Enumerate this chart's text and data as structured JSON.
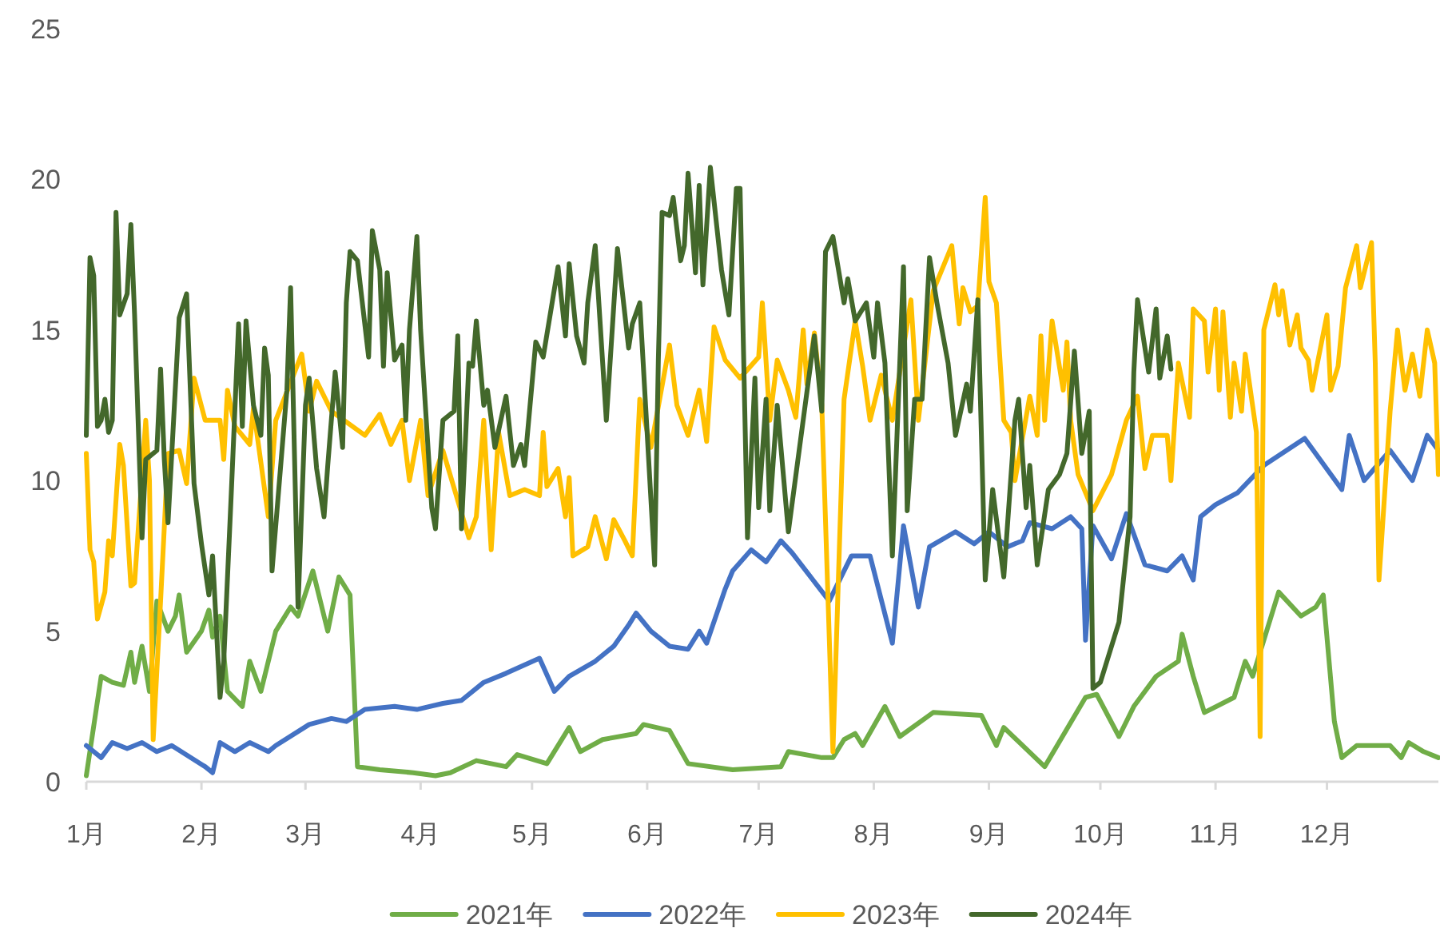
{
  "chart_data": {
    "type": "line",
    "xlim": [
      "--01-01",
      "--12-31"
    ],
    "ylim": [
      0,
      25
    ],
    "yticks": [
      0,
      5,
      10,
      15,
      20,
      25
    ],
    "xticks": [
      {
        "value": "--01-01",
        "label": "1月"
      },
      {
        "value": "--02-01",
        "label": "2月"
      },
      {
        "value": "--03-01",
        "label": "3月"
      },
      {
        "value": "--04-01",
        "label": "4月"
      },
      {
        "value": "--05-01",
        "label": "5月"
      },
      {
        "value": "--06-01",
        "label": "6月"
      },
      {
        "value": "--07-01",
        "label": "7月"
      },
      {
        "value": "--08-01",
        "label": "8月"
      },
      {
        "value": "--09-01",
        "label": "9月"
      },
      {
        "value": "--10-01",
        "label": "10月"
      },
      {
        "value": "--11-01",
        "label": "11月"
      },
      {
        "value": "--12-01",
        "label": "12月"
      }
    ],
    "legend": "bottom",
    "series": [
      {
        "name": "2021年",
        "color": "#70ad47",
        "x": [
          "--01-01",
          "--01-05",
          "--01-08",
          "--01-11",
          "--01-13",
          "--01-14",
          "--01-16",
          "--01-18",
          "--01-20",
          "--01-23",
          "--01-25",
          "--01-26",
          "--01-28",
          "--02-01",
          "--02-03",
          "--02-04",
          "--02-06",
          "--02-08",
          "--02-12",
          "--02-14",
          "--02-17",
          "--02-20",
          "--02-21",
          "--02-25",
          "--02-27",
          "--03-03",
          "--03-07",
          "--03-10",
          "--03-13",
          "--03-15",
          "--03-21",
          "--03-30",
          "--04-05",
          "--04-09",
          "--04-16",
          "--04-24",
          "--04-27",
          "--05-05",
          "--05-11",
          "--05-14",
          "--05-20",
          "--05-29",
          "--05-31",
          "--06-07",
          "--06-12",
          "--06-24",
          "--07-07",
          "--07-09",
          "--07-18",
          "--07-21",
          "--07-24",
          "--07-27",
          "--07-29",
          "--08-04",
          "--08-08",
          "--08-17",
          "--08-30",
          "--09-03",
          "--09-05",
          "--09-16",
          "--09-27",
          "--09-30",
          "--10-06",
          "--10-10",
          "--10-16",
          "--10-22",
          "--10-23",
          "--10-26",
          "--10-29",
          "--11-06",
          "--11-09",
          "--11-11",
          "--11-18",
          "--11-24",
          "--11-28",
          "--11-30",
          "--12-03",
          "--12-05",
          "--12-09",
          "--12-18",
          "--12-21",
          "--12-23",
          "--12-27",
          "--12-31"
        ],
        "values": [
          0.2,
          3.5,
          3.3,
          3.2,
          4.3,
          3.3,
          4.5,
          3.0,
          6.0,
          5.0,
          5.5,
          6.2,
          4.3,
          5.0,
          5.7,
          4.8,
          5.5,
          3.0,
          2.5,
          4.0,
          3.0,
          4.5,
          5.0,
          5.8,
          5.5,
          7.0,
          5.0,
          6.8,
          6.2,
          0.5,
          0.4,
          0.3,
          0.2,
          0.3,
          0.7,
          0.5,
          0.9,
          0.6,
          1.8,
          1.0,
          1.4,
          1.6,
          1.9,
          1.7,
          0.6,
          0.4,
          0.5,
          1.0,
          0.8,
          0.8,
          1.4,
          1.6,
          1.2,
          2.5,
          1.5,
          2.3,
          2.2,
          1.2,
          1.8,
          0.5,
          2.8,
          2.9,
          1.5,
          2.5,
          3.5,
          4.0,
          4.9,
          3.5,
          2.3,
          2.8,
          4.0,
          3.5,
          6.3,
          5.5,
          5.8,
          6.2,
          2.0,
          0.8,
          1.2,
          1.2,
          0.8,
          1.3,
          1.0,
          0.8
        ]
      },
      {
        "name": "2022年",
        "color": "#4472c4",
        "x": [
          "--01-01",
          "--01-05",
          "--01-08",
          "--01-12",
          "--01-16",
          "--01-20",
          "--01-24",
          "--02-02",
          "--02-04",
          "--02-06",
          "--02-10",
          "--02-14",
          "--02-19",
          "--02-21",
          "--03-02",
          "--03-08",
          "--03-12",
          "--03-17",
          "--03-25",
          "--03-31",
          "--04-07",
          "--04-12",
          "--04-18",
          "--04-24",
          "--05-03",
          "--05-07",
          "--05-11",
          "--05-18",
          "--05-23",
          "--05-27",
          "--05-29",
          "--06-02",
          "--06-07",
          "--06-12",
          "--06-15",
          "--06-17",
          "--06-22",
          "--06-24",
          "--06-29",
          "--07-03",
          "--07-07",
          "--07-10",
          "--07-20",
          "--07-22",
          "--07-26",
          "--07-31",
          "--08-06",
          "--08-09",
          "--08-13",
          "--08-16",
          "--08-23",
          "--08-28",
          "--09-01",
          "--09-06",
          "--09-10",
          "--09-12",
          "--09-18",
          "--09-23",
          "--09-26",
          "--09-27",
          "--09-29",
          "--10-04",
          "--10-08",
          "--10-13",
          "--10-19",
          "--10-23",
          "--10-26",
          "--10-28",
          "--11-01",
          "--11-07",
          "--11-14",
          "--11-25",
          "--12-05",
          "--12-07",
          "--12-11",
          "--12-18",
          "--12-24",
          "--12-28",
          "--12-31"
        ],
        "values": [
          1.2,
          0.8,
          1.3,
          1.1,
          1.3,
          1.0,
          1.2,
          0.5,
          0.3,
          1.3,
          1.0,
          1.3,
          1.0,
          1.2,
          1.9,
          2.1,
          2.0,
          2.4,
          2.5,
          2.4,
          2.6,
          2.7,
          3.3,
          3.6,
          4.1,
          3.0,
          3.5,
          4.0,
          4.5,
          5.2,
          5.6,
          5.0,
          4.5,
          4.4,
          5.0,
          4.6,
          6.4,
          7.0,
          7.7,
          7.3,
          8.0,
          7.6,
          6.0,
          6.5,
          7.5,
          7.5,
          4.6,
          8.5,
          5.8,
          7.8,
          8.3,
          7.9,
          8.3,
          7.8,
          8.0,
          8.6,
          8.4,
          8.8,
          8.4,
          4.7,
          8.5,
          7.4,
          8.9,
          7.2,
          7.0,
          7.5,
          6.7,
          8.8,
          9.2,
          9.6,
          10.5,
          11.4,
          9.7,
          11.5,
          10.0,
          11.0,
          10.0,
          11.5,
          11.0
        ]
      },
      {
        "name": "2023年",
        "color": "#ffc000",
        "x": [
          "--01-01",
          "--01-02",
          "--01-03",
          "--01-04",
          "--01-06",
          "--01-07",
          "--01-08",
          "--01-10",
          "--01-11",
          "--01-13",
          "--01-14",
          "--01-17",
          "--01-18",
          "--01-19",
          "--01-21",
          "--01-23",
          "--01-26",
          "--01-28",
          "--01-30",
          "--02-02",
          "--02-06",
          "--02-07",
          "--02-08",
          "--02-10",
          "--02-14",
          "--02-15",
          "--02-19",
          "--02-21",
          "--02-28",
          "--03-02",
          "--03-04",
          "--03-08",
          "--03-17",
          "--03-21",
          "--03-24",
          "--03-27",
          "--03-29",
          "--04-01",
          "--04-03",
          "--04-07",
          "--04-14",
          "--04-16",
          "--04-18",
          "--04-20",
          "--04-22",
          "--04-25",
          "--04-29",
          "--05-03",
          "--05-04",
          "--05-05",
          "--05-08",
          "--05-10",
          "--05-11",
          "--05-12",
          "--05-16",
          "--05-18",
          "--05-21",
          "--05-23",
          "--05-26",
          "--05-28",
          "--05-30",
          "--06-02",
          "--06-07",
          "--06-09",
          "--06-12",
          "--06-15",
          "--06-17",
          "--06-19",
          "--06-22",
          "--06-26",
          "--07-01",
          "--07-02",
          "--07-04",
          "--07-06",
          "--07-09",
          "--07-11",
          "--07-13",
          "--07-14",
          "--07-16",
          "--07-18",
          "--07-21",
          "--07-24",
          "--07-27",
          "--07-29",
          "--07-31",
          "--08-03",
          "--08-06",
          "--08-11",
          "--08-13",
          "--08-17",
          "--08-22",
          "--08-24",
          "--08-25",
          "--08-27",
          "--08-29",
          "--08-31",
          "--09-01",
          "--09-03",
          "--09-05",
          "--09-07",
          "--09-08",
          "--09-12",
          "--09-14",
          "--09-15",
          "--09-16",
          "--09-18",
          "--09-21",
          "--09-22",
          "--09-23",
          "--09-25",
          "--09-29",
          "--10-04",
          "--10-08",
          "--10-11",
          "--10-13",
          "--10-15",
          "--10-19",
          "--10-20",
          "--10-22",
          "--10-25",
          "--10-26",
          "--10-29",
          "--10-30",
          "--11-01",
          "--11-02",
          "--11-03",
          "--11-05",
          "--11-06",
          "--11-08",
          "--11-09",
          "--11-12",
          "--11-13",
          "--11-14",
          "--11-17",
          "--11-18",
          "--11-19",
          "--11-21",
          "--11-23",
          "--11-24",
          "--11-26",
          "--11-27",
          "--12-01",
          "--12-02",
          "--12-04",
          "--12-06",
          "--12-09",
          "--12-10",
          "--12-13",
          "--12-14",
          "--12-15",
          "--12-18",
          "--12-20",
          "--12-22",
          "--12-24",
          "--12-26",
          "--12-28",
          "--12-30",
          "--12-31"
        ],
        "values": [
          10.9,
          7.7,
          7.3,
          5.4,
          6.3,
          8.0,
          7.5,
          11.2,
          10.5,
          6.5,
          6.6,
          12.0,
          10.0,
          1.4,
          6.0,
          10.9,
          11.0,
          9.9,
          13.4,
          12.0,
          12.0,
          10.7,
          13.0,
          11.8,
          11.2,
          12.4,
          8.8,
          12.0,
          14.2,
          12.3,
          13.3,
          12.3,
          11.5,
          12.2,
          11.2,
          12.0,
          10.0,
          12.0,
          9.5,
          11.0,
          8.1,
          8.8,
          12.0,
          7.7,
          11.6,
          9.5,
          9.7,
          9.5,
          11.6,
          9.8,
          10.4,
          8.8,
          10.1,
          7.5,
          7.8,
          8.8,
          7.4,
          8.7,
          8.0,
          7.5,
          12.7,
          11.1,
          14.5,
          12.5,
          11.5,
          13.0,
          11.3,
          15.1,
          14.0,
          13.4,
          14.1,
          15.9,
          12.0,
          14.0,
          13.0,
          12.1,
          15.0,
          13.2,
          14.9,
          12.5,
          1.0,
          12.7,
          15.3,
          13.8,
          12.0,
          13.5,
          12.0,
          16.0,
          12.0,
          16.3,
          17.8,
          15.2,
          16.4,
          15.6,
          15.8,
          19.4,
          16.6,
          15.9,
          12.0,
          11.6,
          10.0,
          12.8,
          11.5,
          14.8,
          12.0,
          15.3,
          13.0,
          14.6,
          12.0,
          10.2,
          9.0,
          10.2,
          12.0,
          12.8,
          10.4,
          11.5,
          11.5,
          10.0,
          13.9,
          12.1,
          15.7,
          15.3,
          13.6,
          15.7,
          13.0,
          15.6,
          12.1,
          13.9,
          12.3,
          14.2,
          11.6,
          1.5,
          15.0,
          16.5,
          15.5,
          16.3,
          14.5,
          15.5,
          14.4,
          14.0,
          13.0,
          15.5,
          13.0,
          13.8,
          16.4,
          17.8,
          16.4,
          17.9,
          13.9,
          6.7,
          12.3,
          15.0,
          13.0,
          14.2,
          12.8,
          15.0,
          13.9,
          10.2
        ]
      },
      {
        "name": "2024年",
        "color": "#43682b",
        "x": [
          "--01-01",
          "--01-02",
          "--01-03",
          "--01-04",
          "--01-05",
          "--01-06",
          "--01-07",
          "--01-08",
          "--01-09",
          "--01-10",
          "--01-12",
          "--01-13",
          "--01-14",
          "--01-16",
          "--01-17",
          "--01-20",
          "--01-21",
          "--01-22",
          "--01-23",
          "--01-26",
          "--01-28",
          "--01-30",
          "--02-01",
          "--02-03",
          "--02-04",
          "--02-06",
          "--02-07",
          "--02-09",
          "--02-11",
          "--02-12",
          "--02-13",
          "--02-15",
          "--02-17",
          "--02-18",
          "--02-19",
          "--02-20",
          "--02-22",
          "--02-24",
          "--02-25",
          "--02-27",
          "--03-01",
          "--03-02",
          "--03-04",
          "--03-06",
          "--03-07",
          "--03-09",
          "--03-11",
          "--03-12",
          "--03-13",
          "--03-15",
          "--03-18",
          "--03-19",
          "--03-21",
          "--03-22",
          "--03-23",
          "--03-25",
          "--03-27",
          "--03-28",
          "--03-29",
          "--03-31",
          "--04-01",
          "--04-04",
          "--04-05",
          "--04-07",
          "--04-10",
          "--04-11",
          "--04-12",
          "--04-14",
          "--04-15",
          "--04-16",
          "--04-18",
          "--04-19",
          "--04-21",
          "--04-24",
          "--04-26",
          "--04-28",
          "--04-29",
          "--05-02",
          "--05-04",
          "--05-08",
          "--05-10",
          "--05-11",
          "--05-13",
          "--05-15",
          "--05-16",
          "--05-18",
          "--05-21",
          "--05-24",
          "--05-27",
          "--05-28",
          "--05-30",
          "--06-03",
          "--06-04",
          "--06-05",
          "--06-07",
          "--06-08",
          "--06-10",
          "--06-11",
          "--06-12",
          "--06-14",
          "--06-15",
          "--06-16",
          "--06-18",
          "--06-21",
          "--06-23",
          "--06-25",
          "--06-26",
          "--06-28",
          "--06-30",
          "--07-01",
          "--07-03",
          "--07-04",
          "--07-06",
          "--07-09",
          "--07-16",
          "--07-18",
          "--07-19",
          "--07-21",
          "--07-24",
          "--07-25",
          "--07-27",
          "--07-30",
          "--08-01",
          "--08-02",
          "--08-04",
          "--08-06",
          "--08-09",
          "--08-10",
          "--08-12",
          "--08-14",
          "--08-16",
          "--08-18",
          "--08-21",
          "--08-23",
          "--08-26",
          "--08-27",
          "--08-29",
          "--08-31",
          "--09-02",
          "--09-05",
          "--09-08",
          "--09-09",
          "--09-11",
          "--09-12",
          "--09-14",
          "--09-17",
          "--09-20",
          "--09-22",
          "--09-24",
          "--09-26",
          "--09-28",
          "--09-29",
          "--10-01",
          "--10-06",
          "--10-09",
          "--10-10",
          "--10-11",
          "--10-14",
          "--10-16",
          "--10-17",
          "--10-19",
          "--10-20"
        ],
        "values": [
          11.5,
          17.4,
          16.8,
          11.8,
          12.0,
          12.7,
          11.6,
          12.0,
          18.9,
          15.5,
          16.2,
          18.5,
          15.5,
          8.1,
          10.7,
          11.0,
          13.7,
          10.7,
          8.6,
          15.4,
          16.2,
          9.9,
          7.9,
          6.2,
          7.5,
          2.8,
          4.0,
          9.5,
          15.2,
          11.8,
          15.3,
          12.5,
          11.5,
          14.4,
          13.5,
          7.0,
          10.0,
          13.0,
          16.4,
          5.8,
          12.5,
          13.4,
          10.4,
          8.8,
          10.5,
          13.6,
          11.1,
          15.9,
          17.6,
          17.3,
          14.1,
          18.3,
          17.0,
          13.8,
          16.9,
          14.0,
          14.5,
          12.0,
          15.0,
          18.1,
          15.0,
          9.1,
          8.4,
          12.0,
          12.3,
          14.8,
          8.4,
          13.9,
          13.8,
          15.3,
          12.5,
          13.0,
          11.1,
          12.8,
          10.5,
          11.2,
          10.5,
          14.6,
          14.1,
          17.1,
          14.8,
          17.2,
          14.8,
          13.9,
          15.9,
          17.8,
          12.0,
          17.7,
          14.4,
          15.2,
          15.9,
          7.2,
          14.0,
          18.9,
          18.8,
          19.4,
          17.3,
          17.8,
          20.2,
          16.9,
          19.8,
          16.5,
          20.4,
          17.0,
          15.5,
          19.7,
          19.7,
          8.1,
          13.4,
          9.1,
          12.7,
          9.0,
          12.5,
          8.3,
          14.8,
          12.3,
          17.6,
          18.1,
          15.9,
          16.7,
          15.3,
          15.9,
          14.1,
          15.9,
          13.9,
          7.5,
          17.1,
          9.0,
          12.7,
          12.7,
          17.4,
          15.9,
          13.9,
          11.5,
          13.2,
          12.3,
          16.0,
          6.7,
          9.7,
          6.8,
          12.0,
          12.7,
          9.1,
          10.5,
          7.2,
          9.7,
          10.2,
          10.9,
          14.3,
          10.9,
          12.3,
          3.1,
          3.3,
          5.3,
          8.8,
          13.6,
          16.0,
          13.6,
          15.7,
          13.4,
          14.8,
          13.7
        ]
      }
    ]
  }
}
